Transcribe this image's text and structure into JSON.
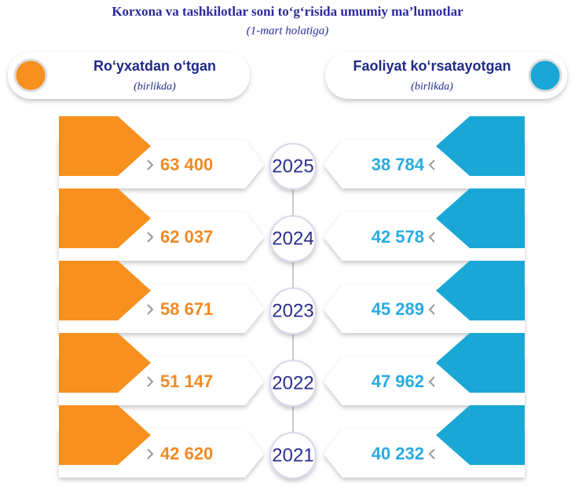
{
  "header": {
    "title": "Korxona va tashkilotlar soni to‘g‘risida umumiy ma’lumotlar",
    "subtitle": "(1-mart holatiga)"
  },
  "left": {
    "title": "Ro‘yxatdan o‘tgan",
    "unit": "(birlikda)"
  },
  "right": {
    "title": "Faoliyat ko‘rsatayotgan",
    "unit": "(birlikda)"
  },
  "rows": [
    {
      "year": "2025",
      "left": "63 400",
      "right": "38 784"
    },
    {
      "year": "2024",
      "left": "62 037",
      "right": "42 578"
    },
    {
      "year": "2023",
      "left": "58 671",
      "right": "45 289"
    },
    {
      "year": "2022",
      "left": "51 147",
      "right": "47 962"
    },
    {
      "year": "2021",
      "left": "42 620",
      "right": "40 232"
    }
  ]
}
